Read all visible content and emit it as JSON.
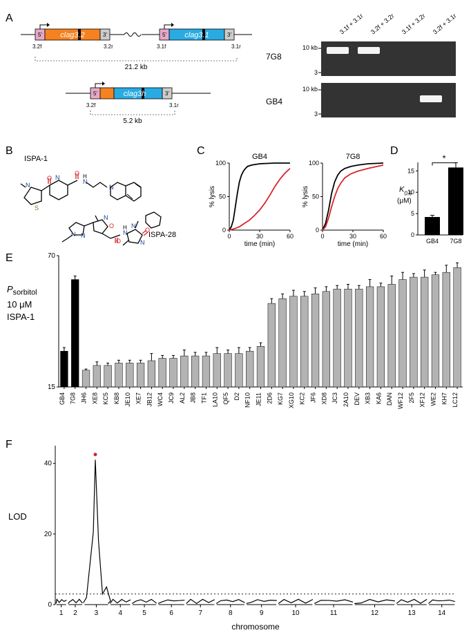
{
  "labels": {
    "A": "A",
    "B": "B",
    "C": "C",
    "D": "D",
    "E": "E",
    "F": "F"
  },
  "panelA": {
    "gene1": "clag3.2",
    "gene2": "clag3.1",
    "geneH": "clag3h",
    "primers": {
      "p32f": "3.2f",
      "p32r": "3.2r",
      "p31f": "3.1f",
      "p31r": "3.1r"
    },
    "dist1": "21.2 kb",
    "dist2": "5.2 kb",
    "box5": "5'",
    "box3": "3'",
    "gel": {
      "row1": "7G8",
      "row2": "GB4",
      "lanes": [
        "3.1f + 3.1r",
        "3.2f + 3.2r",
        "3.1f + 3.2r",
        "3.2f + 3.1r"
      ],
      "markers": [
        "10 kb",
        "3",
        "10 kb",
        "3"
      ]
    },
    "colors": {
      "gene32": "#f58220",
      "gene31": "#29abe2",
      "utr5": "#e6a9c9",
      "utr3": "#cccccc",
      "line": "#000"
    }
  },
  "panelB": {
    "name1": "ISPA-1",
    "name2": "ISPA-28",
    "colors": {
      "C": "#000",
      "N": "#1b3f94",
      "O": "#d8232a",
      "S": "#7b7b2f"
    }
  },
  "panelC": {
    "title1": "GB4",
    "title2": "7G8",
    "xlabel": "time (min)",
    "ylabel": "% lysis",
    "xlim": [
      0,
      60
    ],
    "ylim": [
      0,
      100
    ],
    "xticks": [
      0,
      30,
      60
    ],
    "yticks": [
      0,
      50,
      100
    ],
    "colors": {
      "ctrl": "#000",
      "drug": "#d8232a",
      "axis": "#000"
    },
    "gb4_ctrl": [
      [
        0,
        0
      ],
      [
        2,
        5
      ],
      [
        4,
        15
      ],
      [
        6,
        35
      ],
      [
        8,
        55
      ],
      [
        10,
        72
      ],
      [
        12,
        82
      ],
      [
        14,
        88
      ],
      [
        16,
        92
      ],
      [
        18,
        95
      ],
      [
        22,
        97
      ],
      [
        30,
        99
      ],
      [
        45,
        100
      ],
      [
        60,
        100
      ]
    ],
    "gb4_drug": [
      [
        0,
        0
      ],
      [
        5,
        2
      ],
      [
        10,
        5
      ],
      [
        15,
        10
      ],
      [
        20,
        15
      ],
      [
        25,
        22
      ],
      [
        30,
        30
      ],
      [
        35,
        40
      ],
      [
        40,
        52
      ],
      [
        45,
        65
      ],
      [
        50,
        76
      ],
      [
        55,
        85
      ],
      [
        60,
        92
      ]
    ],
    "t7g8_ctrl": [
      [
        0,
        0
      ],
      [
        3,
        10
      ],
      [
        6,
        30
      ],
      [
        9,
        55
      ],
      [
        12,
        72
      ],
      [
        15,
        82
      ],
      [
        18,
        88
      ],
      [
        22,
        92
      ],
      [
        28,
        95
      ],
      [
        35,
        97
      ],
      [
        45,
        99
      ],
      [
        60,
        100
      ]
    ],
    "t7g8_drug": [
      [
        0,
        0
      ],
      [
        3,
        5
      ],
      [
        6,
        18
      ],
      [
        9,
        35
      ],
      [
        12,
        50
      ],
      [
        15,
        62
      ],
      [
        18,
        70
      ],
      [
        22,
        78
      ],
      [
        28,
        84
      ],
      [
        35,
        88
      ],
      [
        45,
        92
      ],
      [
        60,
        97
      ]
    ]
  },
  "panelD": {
    "ylabel_html": "K<sub>0.5</sub>",
    "yunit": "(μM)",
    "cats": [
      "GB4",
      "7G8"
    ],
    "vals": [
      4.2,
      15.8
    ],
    "errs": [
      0.4,
      1.1
    ],
    "ylim": [
      0,
      17
    ],
    "yticks": [
      0,
      5,
      10,
      15
    ],
    "sig": "*",
    "colors": {
      "bar": "#000",
      "axis": "#000"
    }
  },
  "panelE": {
    "ylabel_html": "P<sub>sorbitol</sub>",
    "ycond": "10 μM\nISPA-1",
    "ylim": [
      0.15,
      0.7
    ],
    "yticks": [
      0.15,
      0.7
    ],
    "colors": {
      "parent": "#000",
      "progeny": "#b3b3b3",
      "axis": "#000",
      "err": "#000"
    },
    "parents": [
      {
        "name": "GB4",
        "val": 0.3,
        "err": 0.015
      },
      {
        "name": "7G8",
        "val": 0.6,
        "err": 0.015
      }
    ],
    "progeny": [
      {
        "name": "JH6",
        "val": 0.22,
        "err": 0.005
      },
      {
        "name": "XE8",
        "val": 0.24,
        "err": 0.015
      },
      {
        "name": "KC5",
        "val": 0.24,
        "err": 0.01
      },
      {
        "name": "KB8",
        "val": 0.25,
        "err": 0.012
      },
      {
        "name": "JE10",
        "val": 0.25,
        "err": 0.012
      },
      {
        "name": "XE7",
        "val": 0.25,
        "err": 0.012
      },
      {
        "name": "JB12",
        "val": 0.26,
        "err": 0.03
      },
      {
        "name": "WC4",
        "val": 0.27,
        "err": 0.012
      },
      {
        "name": "JC9",
        "val": 0.27,
        "err": 0.012
      },
      {
        "name": "AL2",
        "val": 0.28,
        "err": 0.025
      },
      {
        "name": "JB8",
        "val": 0.28,
        "err": 0.015
      },
      {
        "name": "TF1",
        "val": 0.28,
        "err": 0.015
      },
      {
        "name": "LA10",
        "val": 0.29,
        "err": 0.025
      },
      {
        "name": "QF5",
        "val": 0.29,
        "err": 0.015
      },
      {
        "name": "D2",
        "val": 0.29,
        "err": 0.025
      },
      {
        "name": "NF10",
        "val": 0.3,
        "err": 0.015
      },
      {
        "name": "JE11",
        "val": 0.32,
        "err": 0.015
      },
      {
        "name": "2D6",
        "val": 0.5,
        "err": 0.02
      },
      {
        "name": "KG7",
        "val": 0.52,
        "err": 0.02
      },
      {
        "name": "XG10",
        "val": 0.53,
        "err": 0.025
      },
      {
        "name": "KC2",
        "val": 0.53,
        "err": 0.02
      },
      {
        "name": "JF6",
        "val": 0.54,
        "err": 0.025
      },
      {
        "name": "XD8",
        "val": 0.55,
        "err": 0.02
      },
      {
        "name": "JC3",
        "val": 0.56,
        "err": 0.015
      },
      {
        "name": "2A10",
        "val": 0.56,
        "err": 0.02
      },
      {
        "name": "DEV",
        "val": 0.56,
        "err": 0.015
      },
      {
        "name": "XB3",
        "val": 0.57,
        "err": 0.03
      },
      {
        "name": "KA6",
        "val": 0.57,
        "err": 0.015
      },
      {
        "name": "DAN",
        "val": 0.58,
        "err": 0.035
      },
      {
        "name": "WF12",
        "val": 0.6,
        "err": 0.03
      },
      {
        "name": "2F5",
        "val": 0.61,
        "err": 0.015
      },
      {
        "name": "XF12",
        "val": 0.61,
        "err": 0.03
      },
      {
        "name": "WE2",
        "val": 0.62,
        "err": 0.01
      },
      {
        "name": "KH7",
        "val": 0.63,
        "err": 0.03
      },
      {
        "name": "LC12",
        "val": 0.65,
        "err": 0.02
      }
    ]
  },
  "panelF": {
    "ylabel": "LOD",
    "xlabel": "chromosome",
    "ylim": [
      0,
      45
    ],
    "yticks": [
      0,
      20,
      40
    ],
    "threshold": 3,
    "chrom_ticks": [
      1,
      2,
      3,
      4,
      5,
      6,
      7,
      8,
      9,
      10,
      11,
      12,
      13,
      14
    ],
    "chrom_ends": [
      0,
      0.03,
      0.07,
      0.135,
      0.19,
      0.255,
      0.325,
      0.4,
      0.475,
      0.555,
      0.645,
      0.745,
      0.85,
      0.93,
      1.0
    ],
    "peak_chr": 3,
    "peak_pos": 0.1,
    "peak_lod": 41,
    "marker_color": "#d8232a",
    "colors": {
      "line": "#000",
      "axis": "#000"
    }
  }
}
